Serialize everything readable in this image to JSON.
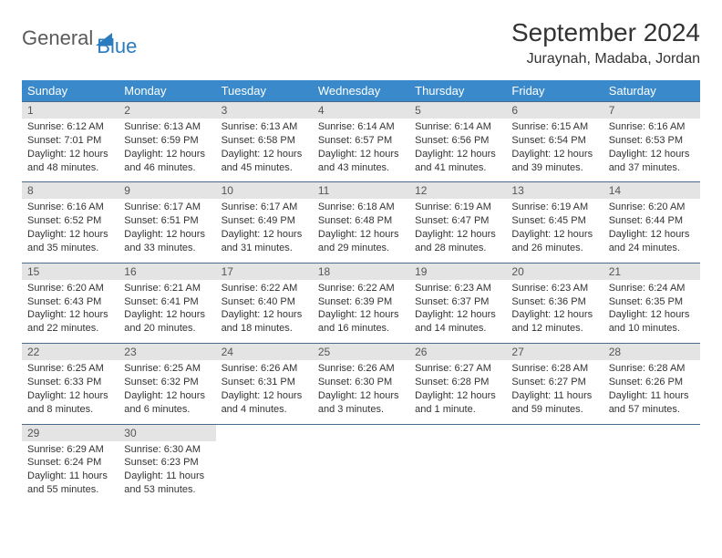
{
  "logo": {
    "part1": "General",
    "part2": "Blue"
  },
  "title": "September 2024",
  "location": "Juraynah, Madaba, Jordan",
  "colors": {
    "header_bg": "#3a8acb",
    "header_text": "#ffffff",
    "daynum_bg": "#e4e4e4",
    "border": "#4a6b8a",
    "logo_gray": "#5a5a5a",
    "logo_blue": "#2b7bbf"
  },
  "weekdays": [
    "Sunday",
    "Monday",
    "Tuesday",
    "Wednesday",
    "Thursday",
    "Friday",
    "Saturday"
  ],
  "days": [
    {
      "n": 1,
      "sr": "6:12 AM",
      "ss": "7:01 PM",
      "dl": "12 hours and 48 minutes."
    },
    {
      "n": 2,
      "sr": "6:13 AM",
      "ss": "6:59 PM",
      "dl": "12 hours and 46 minutes."
    },
    {
      "n": 3,
      "sr": "6:13 AM",
      "ss": "6:58 PM",
      "dl": "12 hours and 45 minutes."
    },
    {
      "n": 4,
      "sr": "6:14 AM",
      "ss": "6:57 PM",
      "dl": "12 hours and 43 minutes."
    },
    {
      "n": 5,
      "sr": "6:14 AM",
      "ss": "6:56 PM",
      "dl": "12 hours and 41 minutes."
    },
    {
      "n": 6,
      "sr": "6:15 AM",
      "ss": "6:54 PM",
      "dl": "12 hours and 39 minutes."
    },
    {
      "n": 7,
      "sr": "6:16 AM",
      "ss": "6:53 PM",
      "dl": "12 hours and 37 minutes."
    },
    {
      "n": 8,
      "sr": "6:16 AM",
      "ss": "6:52 PM",
      "dl": "12 hours and 35 minutes."
    },
    {
      "n": 9,
      "sr": "6:17 AM",
      "ss": "6:51 PM",
      "dl": "12 hours and 33 minutes."
    },
    {
      "n": 10,
      "sr": "6:17 AM",
      "ss": "6:49 PM",
      "dl": "12 hours and 31 minutes."
    },
    {
      "n": 11,
      "sr": "6:18 AM",
      "ss": "6:48 PM",
      "dl": "12 hours and 29 minutes."
    },
    {
      "n": 12,
      "sr": "6:19 AM",
      "ss": "6:47 PM",
      "dl": "12 hours and 28 minutes."
    },
    {
      "n": 13,
      "sr": "6:19 AM",
      "ss": "6:45 PM",
      "dl": "12 hours and 26 minutes."
    },
    {
      "n": 14,
      "sr": "6:20 AM",
      "ss": "6:44 PM",
      "dl": "12 hours and 24 minutes."
    },
    {
      "n": 15,
      "sr": "6:20 AM",
      "ss": "6:43 PM",
      "dl": "12 hours and 22 minutes."
    },
    {
      "n": 16,
      "sr": "6:21 AM",
      "ss": "6:41 PM",
      "dl": "12 hours and 20 minutes."
    },
    {
      "n": 17,
      "sr": "6:22 AM",
      "ss": "6:40 PM",
      "dl": "12 hours and 18 minutes."
    },
    {
      "n": 18,
      "sr": "6:22 AM",
      "ss": "6:39 PM",
      "dl": "12 hours and 16 minutes."
    },
    {
      "n": 19,
      "sr": "6:23 AM",
      "ss": "6:37 PM",
      "dl": "12 hours and 14 minutes."
    },
    {
      "n": 20,
      "sr": "6:23 AM",
      "ss": "6:36 PM",
      "dl": "12 hours and 12 minutes."
    },
    {
      "n": 21,
      "sr": "6:24 AM",
      "ss": "6:35 PM",
      "dl": "12 hours and 10 minutes."
    },
    {
      "n": 22,
      "sr": "6:25 AM",
      "ss": "6:33 PM",
      "dl": "12 hours and 8 minutes."
    },
    {
      "n": 23,
      "sr": "6:25 AM",
      "ss": "6:32 PM",
      "dl": "12 hours and 6 minutes."
    },
    {
      "n": 24,
      "sr": "6:26 AM",
      "ss": "6:31 PM",
      "dl": "12 hours and 4 minutes."
    },
    {
      "n": 25,
      "sr": "6:26 AM",
      "ss": "6:30 PM",
      "dl": "12 hours and 3 minutes."
    },
    {
      "n": 26,
      "sr": "6:27 AM",
      "ss": "6:28 PM",
      "dl": "12 hours and 1 minute."
    },
    {
      "n": 27,
      "sr": "6:28 AM",
      "ss": "6:27 PM",
      "dl": "11 hours and 59 minutes."
    },
    {
      "n": 28,
      "sr": "6:28 AM",
      "ss": "6:26 PM",
      "dl": "11 hours and 57 minutes."
    },
    {
      "n": 29,
      "sr": "6:29 AM",
      "ss": "6:24 PM",
      "dl": "11 hours and 55 minutes."
    },
    {
      "n": 30,
      "sr": "6:30 AM",
      "ss": "6:23 PM",
      "dl": "11 hours and 53 minutes."
    }
  ],
  "labels": {
    "sunrise": "Sunrise:",
    "sunset": "Sunset:",
    "daylight": "Daylight:"
  }
}
